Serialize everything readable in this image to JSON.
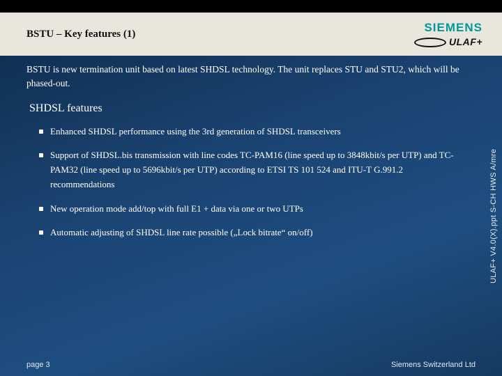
{
  "header": {
    "title": "BSTU – Key features (1)",
    "siemens": "SIEMENS",
    "ulaf": "ULAF+"
  },
  "intro": "BSTU is new termination unit based on latest SHDSL technology. The unit replaces STU and STU2, which will be phased-out.",
  "section_title": "SHDSL features",
  "features": [
    "Enhanced  SHDSL performance using the 3rd generation of SHDSL transceivers",
    "Support of SHDSL.bis transmission with line codes TC-PAM16 (line speed up to 3848kbit/s per UTP) and TC-PAM32 (line speed up to 5696kbit/s  per UTP) according to ETSI TS 101 524 and ITU-T G.991.2 recommendations",
    "New operation mode add/top with full E1 + data via one or two UTPs",
    "Automatic adjusting of SHDSL line rate possible  („Lock bitrate“  on/off)"
  ],
  "footer": {
    "page": "page 3",
    "company": "Siemens Switzerland Ltd"
  },
  "side_label": "ULAF+ V4.0(X).ppt  S-CH HWS A/mre"
}
